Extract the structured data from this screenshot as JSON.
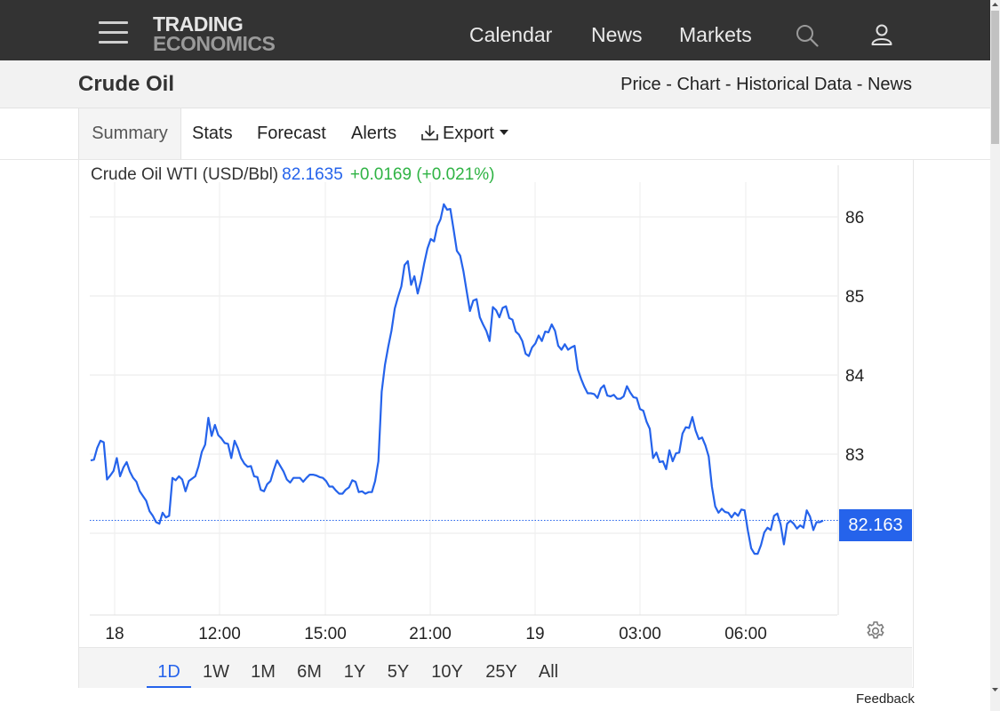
{
  "header": {
    "logo_line1": "TRADING",
    "logo_line2": "ECONOMICS",
    "nav": [
      {
        "label": "Calendar"
      },
      {
        "label": "News"
      },
      {
        "label": "Markets"
      }
    ],
    "icons": [
      "hamburger-icon",
      "search-icon",
      "user-icon"
    ]
  },
  "page": {
    "title": "Crude Oil",
    "subnav": [
      "Price",
      "Chart",
      "Historical Data",
      "News"
    ],
    "subnav_separator": " - "
  },
  "tabs": [
    {
      "label": "Summary",
      "active": true
    },
    {
      "label": "Stats"
    },
    {
      "label": "Forecast"
    },
    {
      "label": "Alerts"
    },
    {
      "label": "Export",
      "icon": "download-icon",
      "dropdown": true
    }
  ],
  "quote": {
    "name": "Crude Oil WTI (USD/Bbl)",
    "price": "82.1635",
    "change": "+0.0169 (+0.021%)"
  },
  "chart_data": {
    "type": "line",
    "ylim": [
      80.75,
      86.5
    ],
    "y_ticks": [
      83,
      84,
      85,
      86
    ],
    "y_tick_labels": [
      "83",
      "84",
      "85",
      "86"
    ],
    "x_tick_labels": [
      "18",
      "12:00",
      "15:00",
      "21:00",
      "19",
      "03:00",
      "06:00"
    ],
    "grid": true,
    "current_price_label": "82.163",
    "current_price": 82.163,
    "series_color": "#2563eb",
    "series": [
      {
        "values": [
          82.92,
          82.93,
          83.08,
          83.17,
          83.15,
          82.68,
          82.73,
          82.79,
          82.95,
          82.72,
          82.83,
          82.9,
          82.78,
          82.7,
          82.65,
          82.53,
          82.47,
          82.41,
          82.28,
          82.22,
          82.14,
          82.12,
          82.26,
          82.2,
          82.22,
          82.7,
          82.67,
          82.72,
          82.68,
          82.53,
          82.66,
          82.69,
          82.72,
          82.85,
          83.03,
          83.12,
          83.46,
          83.23,
          83.37,
          83.24,
          83.2,
          83.14,
          83.13,
          82.95,
          83.17,
          83.08,
          82.95,
          82.88,
          82.84,
          82.85,
          82.72,
          82.71,
          82.55,
          82.53,
          82.62,
          82.66,
          82.8,
          82.92,
          82.85,
          82.78,
          82.68,
          82.64,
          82.7,
          82.7,
          82.7,
          82.65,
          82.7,
          82.74,
          82.74,
          82.73,
          82.71,
          82.7,
          82.66,
          82.59,
          82.59,
          82.54,
          82.5,
          82.5,
          82.55,
          82.58,
          82.67,
          82.65,
          82.52,
          82.53,
          82.5,
          82.52,
          82.52,
          82.66,
          82.91,
          83.79,
          84.13,
          84.36,
          84.56,
          84.84,
          84.99,
          85.12,
          85.39,
          85.44,
          85.14,
          85.25,
          85.03,
          85.19,
          85.41,
          85.6,
          85.72,
          85.69,
          85.88,
          85.97,
          86.16,
          86.09,
          86.1,
          85.84,
          85.57,
          85.51,
          85.31,
          85.06,
          84.81,
          84.94,
          84.96,
          84.73,
          84.64,
          84.56,
          84.43,
          84.86,
          84.82,
          84.73,
          84.85,
          84.87,
          84.72,
          84.7,
          84.55,
          84.51,
          84.43,
          84.27,
          84.24,
          84.35,
          84.4,
          84.5,
          84.43,
          84.55,
          84.54,
          84.64,
          84.56,
          84.37,
          84.32,
          84.39,
          84.32,
          84.35,
          84.37,
          84.07,
          83.95,
          83.85,
          83.77,
          83.77,
          83.76,
          83.71,
          83.83,
          83.87,
          83.74,
          83.73,
          83.75,
          83.7,
          83.7,
          83.73,
          83.86,
          83.78,
          83.72,
          83.71,
          83.57,
          83.55,
          83.41,
          83.32,
          82.95,
          83.02,
          82.9,
          82.91,
          82.81,
          83.05,
          82.91,
          83.01,
          83.02,
          83.26,
          83.34,
          83.33,
          83.47,
          83.3,
          83.19,
          83.21,
          83.11,
          82.97,
          82.59,
          82.34,
          82.26,
          82.31,
          82.27,
          82.26,
          82.2,
          82.26,
          82.22,
          82.3,
          82.29,
          82.03,
          81.81,
          81.74,
          81.74,
          81.85,
          82.01,
          82.07,
          82.04,
          82.22,
          82.25,
          82.11,
          81.86,
          82.12,
          82.16,
          82.12,
          82.06,
          82.1,
          82.07,
          82.29,
          82.21,
          82.04,
          82.14,
          82.14,
          82.16
        ]
      }
    ]
  },
  "range_buttons": [
    {
      "label": "1D",
      "active": true
    },
    {
      "label": "1W"
    },
    {
      "label": "1M"
    },
    {
      "label": "6M"
    },
    {
      "label": "1Y"
    },
    {
      "label": "5Y"
    },
    {
      "label": "10Y"
    },
    {
      "label": "25Y"
    },
    {
      "label": "All"
    }
  ],
  "footer": {
    "feedback_label": "Feedback"
  }
}
